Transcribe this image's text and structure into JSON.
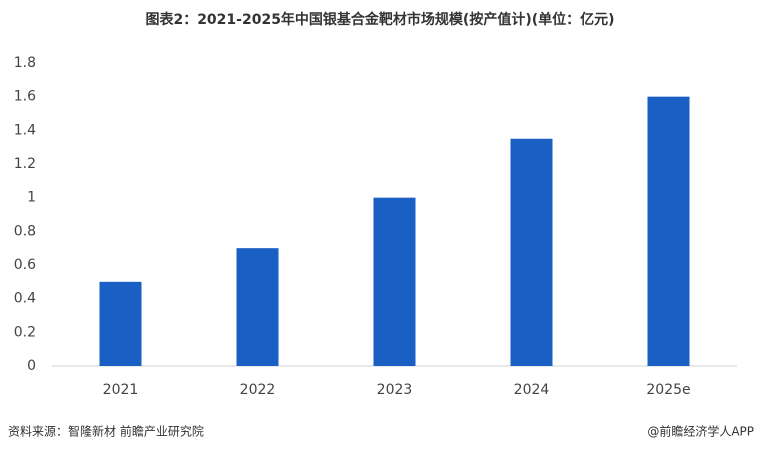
{
  "chart_data": {
    "type": "bar",
    "title": "图表2：2021-2025年中国银基合金靶材市场规模(按产值计)(单位：亿元)",
    "categories": [
      "2021",
      "2022",
      "2023",
      "2024",
      "2025e"
    ],
    "values": [
      0.5,
      0.7,
      1,
      1.35,
      1.6
    ],
    "color": "#1a5fc4",
    "ylim": [
      0,
      1.8
    ],
    "yticks": [
      0,
      0.2,
      0.4,
      0.6,
      0.8,
      1,
      1.2,
      1.4,
      1.6,
      1.8
    ],
    "grid": false,
    "source": "资料来源：智隆新材 前瞻产业研究院",
    "credit": "@前瞻经济学人APP"
  }
}
